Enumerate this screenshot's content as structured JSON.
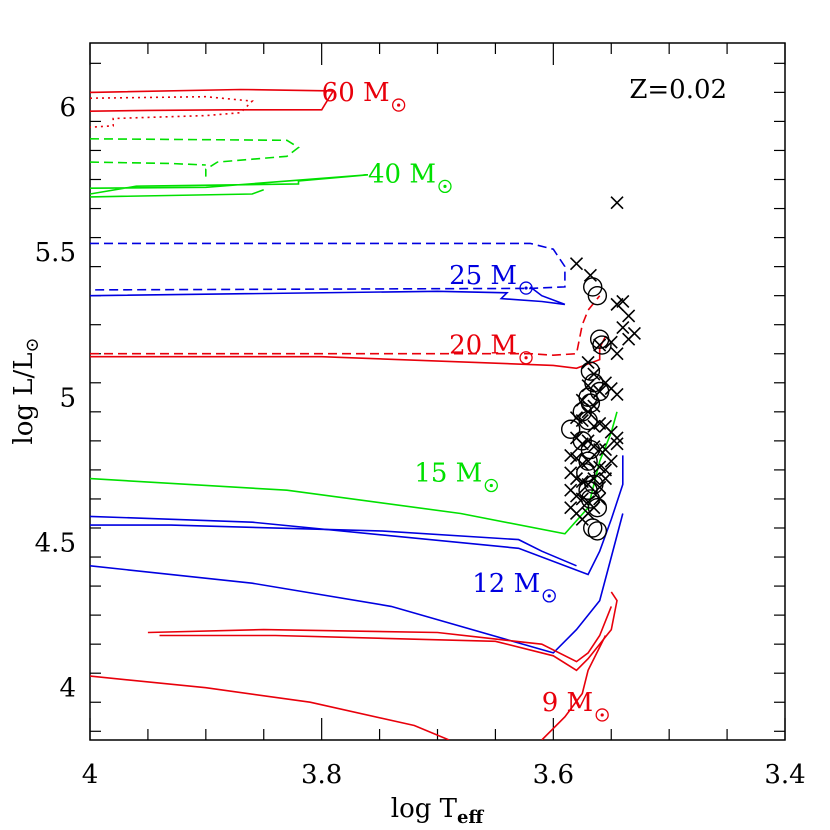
{
  "chart_data": {
    "type": "scatter",
    "title": "",
    "xlabel": "log T",
    "xlabel_sub": "eff",
    "ylabel": "log L/L",
    "ylabel_sub": "⊙",
    "xlim": [
      4.0,
      3.4
    ],
    "ylim": [
      3.82,
      6.22
    ],
    "x_ticks": [
      4.0,
      3.8,
      3.6,
      3.4
    ],
    "x_tick_labels": [
      "4",
      "3.8",
      "3.6",
      "3.4"
    ],
    "y_ticks": [
      4.0,
      4.5,
      5.0,
      5.5,
      6.0
    ],
    "y_tick_labels": [
      "4",
      "4.5",
      "5",
      "5.5",
      "6"
    ],
    "grid": false,
    "annotations": [
      {
        "text": "Z=0.02",
        "x": 3.45,
        "y": 6.03,
        "color": "#000000",
        "anchor": "end"
      },
      {
        "text": "60 M",
        "x": 3.8,
        "y": 6.02,
        "color": "#e8000b",
        "sun": true
      },
      {
        "text": "40 M",
        "x": 3.76,
        "y": 5.74,
        "color": "#00e000",
        "sun": true
      },
      {
        "text": "25 M",
        "x": 3.69,
        "y": 5.39,
        "color": "#0000e0",
        "sun": true
      },
      {
        "text": "20 M",
        "x": 3.69,
        "y": 5.15,
        "color": "#e8000b",
        "sun": true
      },
      {
        "text": "15 M",
        "x": 3.72,
        "y": 4.71,
        "color": "#00e000",
        "sun": true
      },
      {
        "text": "12 M",
        "x": 3.67,
        "y": 4.33,
        "color": "#0000e0",
        "sun": true
      },
      {
        "text": "9 M",
        "x": 3.61,
        "y": 3.92,
        "color": "#e8000b",
        "sun": true
      }
    ],
    "tracks": [
      {
        "name": "60 M",
        "color": "#e8000b",
        "dash": "solid",
        "points": [
          [
            4.0,
            6.05
          ],
          [
            3.87,
            6.06
          ],
          [
            3.79,
            6.055
          ],
          [
            3.8,
            5.99
          ],
          [
            3.88,
            5.99
          ],
          [
            3.95,
            5.988
          ],
          [
            4.0,
            5.985
          ]
        ]
      },
      {
        "name": "60 M",
        "color": "#e8000b",
        "dash": "dotted",
        "points": [
          [
            4.0,
            6.03
          ],
          [
            3.9,
            6.035
          ],
          [
            3.86,
            6.02
          ],
          [
            3.87,
            5.98
          ],
          [
            3.9,
            5.97
          ],
          [
            3.98,
            5.96
          ],
          [
            3.98,
            5.935
          ],
          [
            4.0,
            5.93
          ]
        ]
      },
      {
        "name": "40 M",
        "color": "#00e000",
        "dash": "dashed",
        "points": [
          [
            4.0,
            5.89
          ],
          [
            3.83,
            5.885
          ],
          [
            3.82,
            5.86
          ],
          [
            3.83,
            5.83
          ],
          [
            3.86,
            5.82
          ],
          [
            3.89,
            5.81
          ],
          [
            3.9,
            5.785
          ],
          [
            3.9,
            5.76
          ]
        ]
      },
      {
        "name": "40 M",
        "color": "#00e000",
        "dash": "dashed",
        "points": [
          [
            4.0,
            5.81
          ],
          [
            3.93,
            5.805
          ],
          [
            3.9,
            5.8
          ]
        ]
      },
      {
        "name": "40 M",
        "color": "#00e000",
        "dash": "solid",
        "points": [
          [
            4.0,
            5.72
          ],
          [
            3.9,
            5.723
          ],
          [
            3.76,
            5.766
          ],
          [
            3.82,
            5.745
          ],
          [
            3.82,
            5.735
          ],
          [
            3.96,
            5.727
          ],
          [
            4.0,
            5.7
          ]
        ]
      },
      {
        "name": "40 M",
        "color": "#00e000",
        "dash": "solid",
        "points": [
          [
            4.0,
            5.69
          ],
          [
            3.86,
            5.7
          ],
          [
            3.85,
            5.715
          ]
        ]
      },
      {
        "name": "25 M",
        "color": "#0000e0",
        "dash": "dashed",
        "points": [
          [
            4.0,
            5.53
          ],
          [
            3.62,
            5.53
          ],
          [
            3.6,
            5.51
          ],
          [
            3.59,
            5.45
          ],
          [
            3.59,
            5.38
          ],
          [
            3.62,
            5.375
          ],
          [
            4.0,
            5.37
          ]
        ]
      },
      {
        "name": "25 M",
        "color": "#0000e0",
        "dash": "solid",
        "points": [
          [
            4.0,
            5.35
          ],
          [
            3.7,
            5.365
          ],
          [
            3.64,
            5.36
          ],
          [
            3.645,
            5.34
          ],
          [
            3.61,
            5.33
          ],
          [
            3.59,
            5.32
          ],
          [
            3.61,
            5.35
          ],
          [
            3.62,
            5.38
          ]
        ]
      },
      {
        "name": "20 M",
        "color": "#e8000b",
        "dash": "dashed",
        "points": [
          [
            4.0,
            5.15
          ],
          [
            3.62,
            5.15
          ],
          [
            3.6,
            5.145
          ],
          [
            3.58,
            5.15
          ],
          [
            3.575,
            5.25
          ],
          [
            3.57,
            5.3
          ],
          [
            3.56,
            5.35
          ]
        ]
      },
      {
        "name": "20 M",
        "color": "#e8000b",
        "dash": "solid",
        "points": [
          [
            4.0,
            5.14
          ],
          [
            3.8,
            5.14
          ],
          [
            3.6,
            5.11
          ],
          [
            3.58,
            5.1
          ],
          [
            3.56,
            5.13
          ],
          [
            3.56,
            5.17
          ],
          [
            3.555,
            5.21
          ]
        ]
      },
      {
        "name": "15 M",
        "color": "#00e000",
        "dash": "solid",
        "points": [
          [
            4.0,
            4.72
          ],
          [
            3.83,
            4.68
          ],
          [
            3.68,
            4.6
          ],
          [
            3.59,
            4.53
          ],
          [
            3.57,
            4.62
          ],
          [
            3.56,
            4.78
          ],
          [
            3.55,
            4.88
          ],
          [
            3.545,
            4.95
          ]
        ]
      },
      {
        "name": "12 M",
        "color": "#0000e0",
        "dash": "solid",
        "points": [
          [
            4.0,
            4.59
          ],
          [
            3.86,
            4.57
          ],
          [
            3.63,
            4.48
          ],
          [
            3.57,
            4.39
          ],
          [
            3.56,
            4.47
          ],
          [
            3.55,
            4.58
          ],
          [
            3.54,
            4.7
          ],
          [
            3.54,
            4.8
          ]
        ]
      },
      {
        "name": "12 M",
        "color": "#0000e0",
        "dash": "solid",
        "points": [
          [
            4.0,
            4.56
          ],
          [
            3.93,
            4.56
          ],
          [
            3.75,
            4.54
          ],
          [
            3.63,
            4.51
          ],
          [
            3.61,
            4.47
          ],
          [
            3.58,
            4.42
          ]
        ]
      },
      {
        "name": "12 M",
        "color": "#0000e0",
        "dash": "solid",
        "points": [
          [
            4.0,
            4.42
          ],
          [
            3.86,
            4.36
          ],
          [
            3.74,
            4.28
          ],
          [
            3.6,
            4.12
          ],
          [
            3.58,
            4.2
          ],
          [
            3.56,
            4.3
          ],
          [
            3.55,
            4.45
          ],
          [
            3.54,
            4.6
          ]
        ]
      },
      {
        "name": "9 M",
        "color": "#e8000b",
        "dash": "solid",
        "points": [
          [
            3.95,
            4.19
          ],
          [
            3.85,
            4.2
          ],
          [
            3.7,
            4.19
          ],
          [
            3.61,
            4.15
          ],
          [
            3.58,
            4.09
          ],
          [
            3.57,
            4.12
          ],
          [
            3.56,
            4.18
          ],
          [
            3.55,
            4.28
          ]
        ]
      },
      {
        "name": "9 M",
        "color": "#e8000b",
        "dash": "solid",
        "points": [
          [
            3.94,
            4.18
          ],
          [
            3.84,
            4.18
          ],
          [
            3.65,
            4.16
          ],
          [
            3.6,
            4.11
          ],
          [
            3.58,
            4.06
          ],
          [
            3.57,
            4.1
          ],
          [
            3.55,
            4.2
          ],
          [
            3.545,
            4.3
          ],
          [
            3.55,
            4.33
          ]
        ]
      },
      {
        "name": "9 M",
        "color": "#e8000b",
        "dash": "solid",
        "points": [
          [
            4.0,
            4.04
          ],
          [
            3.9,
            4.0
          ],
          [
            3.81,
            3.95
          ],
          [
            3.72,
            3.87
          ],
          [
            3.69,
            3.82
          ]
        ]
      },
      {
        "name": "9 M",
        "color": "#e8000b",
        "dash": "solid",
        "points": [
          [
            3.61,
            3.82
          ],
          [
            3.59,
            3.9
          ],
          [
            3.575,
            3.98
          ],
          [
            3.57,
            4.06
          ],
          [
            3.56,
            4.14
          ],
          [
            3.555,
            4.18
          ]
        ]
      }
    ],
    "crosses": [
      [
        3.545,
        5.67
      ],
      [
        3.58,
        5.46
      ],
      [
        3.568,
        5.42
      ],
      [
        3.545,
        5.32
      ],
      [
        3.54,
        5.33
      ],
      [
        3.535,
        5.28
      ],
      [
        3.54,
        5.24
      ],
      [
        3.53,
        5.22
      ],
      [
        3.535,
        5.2
      ],
      [
        3.55,
        5.19
      ],
      [
        3.56,
        5.18
      ],
      [
        3.545,
        5.15
      ],
      [
        3.57,
        5.12
      ],
      [
        3.565,
        5.08
      ],
      [
        3.555,
        5.05
      ],
      [
        3.57,
        5.04
      ],
      [
        3.56,
        5.02
      ],
      [
        3.55,
        5.03
      ],
      [
        3.545,
        5.01
      ],
      [
        3.575,
        4.99
      ],
      [
        3.565,
        4.97
      ],
      [
        3.57,
        4.95
      ],
      [
        3.58,
        4.93
      ],
      [
        3.575,
        4.92
      ],
      [
        3.565,
        4.9
      ],
      [
        3.56,
        4.91
      ],
      [
        3.555,
        4.9
      ],
      [
        3.55,
        4.88
      ],
      [
        3.545,
        4.86
      ],
      [
        3.58,
        4.86
      ],
      [
        3.575,
        4.84
      ],
      [
        3.57,
        4.85
      ],
      [
        3.565,
        4.83
      ],
      [
        3.56,
        4.82
      ],
      [
        3.555,
        4.82
      ],
      [
        3.585,
        4.8
      ],
      [
        3.58,
        4.79
      ],
      [
        3.575,
        4.77
      ],
      [
        3.57,
        4.78
      ],
      [
        3.56,
        4.76
      ],
      [
        3.555,
        4.75
      ],
      [
        3.585,
        4.74
      ],
      [
        3.58,
        4.72
      ],
      [
        3.575,
        4.71
      ],
      [
        3.57,
        4.7
      ],
      [
        3.565,
        4.72
      ],
      [
        3.56,
        4.69
      ],
      [
        3.585,
        4.68
      ],
      [
        3.58,
        4.66
      ],
      [
        3.575,
        4.65
      ],
      [
        3.57,
        4.64
      ],
      [
        3.585,
        4.62
      ],
      [
        3.58,
        4.6
      ],
      [
        3.575,
        4.58
      ],
      [
        3.57,
        4.6
      ],
      [
        3.565,
        4.62
      ],
      [
        3.56,
        4.65
      ],
      [
        3.545,
        4.84
      ],
      [
        3.55,
        4.78
      ],
      [
        3.555,
        4.72
      ]
    ],
    "circles": [
      [
        3.566,
        5.38
      ],
      [
        3.562,
        5.35
      ],
      [
        3.56,
        5.2
      ],
      [
        3.558,
        5.18
      ],
      [
        3.568,
        5.09
      ],
      [
        3.565,
        5.05
      ],
      [
        3.56,
        5.02
      ],
      [
        3.57,
        5.0
      ],
      [
        3.568,
        4.98
      ],
      [
        3.575,
        4.95
      ],
      [
        3.57,
        4.92
      ],
      [
        3.585,
        4.89
      ],
      [
        3.575,
        4.85
      ],
      [
        3.568,
        4.82
      ],
      [
        3.57,
        4.78
      ],
      [
        3.572,
        4.74
      ],
      [
        3.565,
        4.7
      ],
      [
        3.57,
        4.68
      ],
      [
        3.568,
        4.65
      ],
      [
        3.562,
        4.62
      ],
      [
        3.566,
        4.55
      ],
      [
        3.562,
        4.54
      ]
    ]
  }
}
